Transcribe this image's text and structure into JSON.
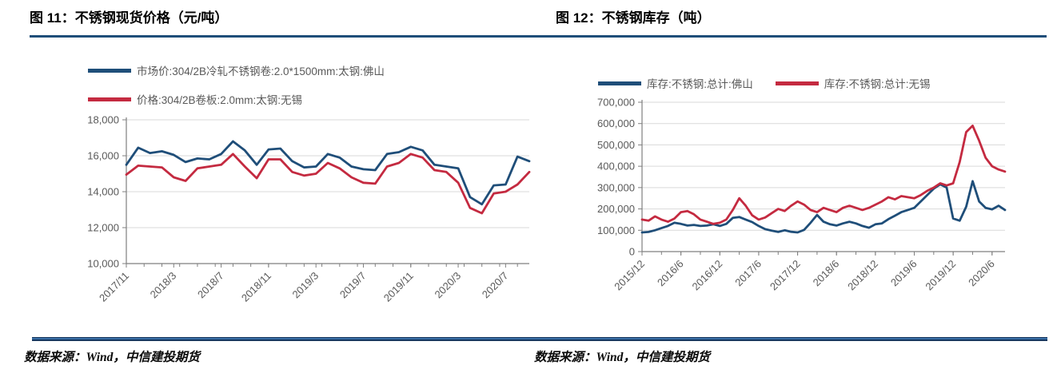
{
  "page": {
    "background": "#FFFFFF",
    "rule_color": "#1F4E79",
    "grid_color": "#D9D9D9",
    "axis_color": "#7F7F7F",
    "tick_label_color": "#595959"
  },
  "figures": [
    {
      "source": "数据来源：Wind，中信建投期货"
    },
    {
      "source": "数据来源：Wind，中信建投期货"
    }
  ],
  "chart_data": [
    {
      "type": "line",
      "title": "图 11：不锈钢现货价格（元/吨）",
      "xlabel": "",
      "ylabel": "元/吨",
      "legend_position": "top-left",
      "grid": "horizontal",
      "ylim": [
        10000,
        18000
      ],
      "yticks": [
        10000,
        12000,
        14000,
        16000,
        18000
      ],
      "ytick_labels": [
        "10,000",
        "12,000",
        "14,000",
        "16,000",
        "18,000"
      ],
      "x_tick_labels": [
        "2017/11",
        "2018/3",
        "2018/7",
        "2018/11",
        "2019/3",
        "2019/7",
        "2019/11",
        "2020/3",
        "2020/7"
      ],
      "x": [
        "2017/11",
        "2017/12",
        "2018/1",
        "2018/2",
        "2018/3",
        "2018/4",
        "2018/5",
        "2018/6",
        "2018/7",
        "2018/8",
        "2018/9",
        "2018/10",
        "2018/11",
        "2018/12",
        "2019/1",
        "2019/2",
        "2019/3",
        "2019/4",
        "2019/5",
        "2019/6",
        "2019/7",
        "2019/8",
        "2019/9",
        "2019/10",
        "2019/11",
        "2019/12",
        "2020/1",
        "2020/2",
        "2020/3",
        "2020/4",
        "2020/5",
        "2020/6",
        "2020/7",
        "2020/8",
        "2020/9"
      ],
      "series": [
        {
          "name": "市场价:304/2B冷轧不锈钢卷:2.0*1500mm:太钢:佛山",
          "color": "#1F4E79",
          "values": [
            15500,
            16450,
            16150,
            16250,
            16050,
            15650,
            15850,
            15800,
            16100,
            16800,
            16300,
            15500,
            16350,
            16400,
            15700,
            15350,
            15400,
            16100,
            15900,
            15400,
            15250,
            15200,
            16100,
            16200,
            16500,
            16300,
            15500,
            15400,
            15300,
            13700,
            13300,
            14350,
            14400,
            15950,
            15700
          ]
        },
        {
          "name": "价格:304/2B卷板:2.0mm:太钢:无锡",
          "color": "#C42A40",
          "values": [
            14950,
            15450,
            15400,
            15350,
            14800,
            14600,
            15300,
            15400,
            15500,
            16100,
            15400,
            14750,
            15800,
            15800,
            15100,
            14900,
            15000,
            15600,
            15300,
            14800,
            14500,
            14450,
            15400,
            15600,
            16100,
            15900,
            15200,
            15100,
            14500,
            13100,
            12800,
            13900,
            14000,
            14400,
            15100
          ]
        }
      ]
    },
    {
      "type": "line",
      "title": "图 12：不锈钢库存（吨）",
      "xlabel": "",
      "ylabel": "吨",
      "legend_position": "top",
      "grid": "horizontal",
      "ylim": [
        0,
        700000
      ],
      "yticks": [
        0,
        100000,
        200000,
        300000,
        400000,
        500000,
        600000,
        700000
      ],
      "ytick_labels": [
        "0",
        "100,000",
        "200,000",
        "300,000",
        "400,000",
        "500,000",
        "600,000",
        "700,000"
      ],
      "x_tick_labels": [
        "2015/12",
        "2016/6",
        "2016/12",
        "2017/6",
        "2017/12",
        "2018/6",
        "2018/12",
        "2019/6",
        "2019/12",
        "2020/6"
      ],
      "x": [
        "2015/12",
        "2016/1",
        "2016/2",
        "2016/3",
        "2016/4",
        "2016/5",
        "2016/6",
        "2016/7",
        "2016/8",
        "2016/9",
        "2016/10",
        "2016/11",
        "2016/12",
        "2017/1",
        "2017/2",
        "2017/3",
        "2017/4",
        "2017/5",
        "2017/6",
        "2017/7",
        "2017/8",
        "2017/9",
        "2017/10",
        "2017/11",
        "2017/12",
        "2018/1",
        "2018/2",
        "2018/3",
        "2018/4",
        "2018/5",
        "2018/6",
        "2018/7",
        "2018/8",
        "2018/9",
        "2018/10",
        "2018/11",
        "2018/12",
        "2019/1",
        "2019/2",
        "2019/3",
        "2019/4",
        "2019/5",
        "2019/6",
        "2019/7",
        "2019/8",
        "2019/9",
        "2019/10",
        "2019/11",
        "2019/12",
        "2020/1",
        "2020/2",
        "2020/3",
        "2020/4",
        "2020/5",
        "2020/6",
        "2020/7",
        "2020/8"
      ],
      "series": [
        {
          "name": "库存:不锈钢:总计:佛山",
          "color": "#1F4E79",
          "values": [
            90000,
            92000,
            100000,
            110000,
            120000,
            135000,
            130000,
            122000,
            125000,
            120000,
            122000,
            128000,
            120000,
            130000,
            158000,
            162000,
            150000,
            138000,
            120000,
            105000,
            98000,
            92000,
            100000,
            93000,
            90000,
            102000,
            135000,
            172000,
            140000,
            128000,
            122000,
            132000,
            140000,
            132000,
            120000,
            112000,
            128000,
            132000,
            152000,
            168000,
            185000,
            195000,
            205000,
            235000,
            265000,
            295000,
            315000,
            300000,
            155000,
            145000,
            210000,
            330000,
            235000,
            205000,
            198000,
            215000,
            195000
          ]
        },
        {
          "name": "库存:不锈钢:总计:无锡",
          "color": "#C42A40",
          "values": [
            150000,
            145000,
            165000,
            150000,
            140000,
            155000,
            185000,
            190000,
            175000,
            150000,
            140000,
            130000,
            135000,
            150000,
            195000,
            250000,
            215000,
            170000,
            150000,
            160000,
            180000,
            200000,
            190000,
            215000,
            235000,
            220000,
            195000,
            185000,
            205000,
            195000,
            185000,
            205000,
            215000,
            205000,
            195000,
            205000,
            220000,
            235000,
            255000,
            245000,
            260000,
            255000,
            250000,
            265000,
            285000,
            300000,
            320000,
            310000,
            320000,
            420000,
            560000,
            590000,
            520000,
            440000,
            400000,
            385000,
            375000
          ]
        }
      ]
    }
  ]
}
